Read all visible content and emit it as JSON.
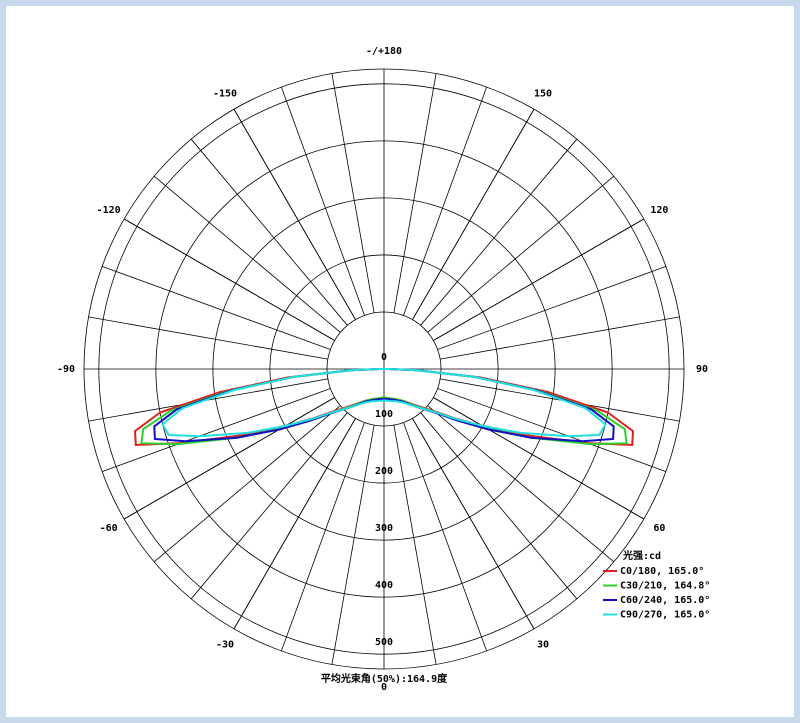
{
  "chart_data": {
    "type": "polar",
    "legend_title": "光强:cd",
    "footer": "平均光束角(50%):164.9度",
    "rlim": [
      0,
      526
    ],
    "rticks": [
      0,
      100,
      200,
      300,
      400,
      500
    ],
    "thetaticks": [
      {
        "value": 180,
        "label": "-/+180"
      },
      150,
      120,
      90,
      60,
      30,
      0,
      -30,
      -60,
      -90,
      -120,
      -150
    ],
    "x": [
      -90,
      -88,
      -85,
      -82,
      -79,
      -76,
      -73,
      -70,
      -65,
      -60,
      -55,
      -50,
      -40,
      -30,
      -20,
      -10,
      0,
      10,
      20,
      30,
      40,
      50,
      55,
      60,
      65,
      70,
      73,
      76,
      79,
      82,
      85,
      88,
      90
    ],
    "series": [
      {
        "name": "C0/180, 165.0°",
        "color": "#e02020",
        "values": [
          5,
          60,
          170,
          290,
          400,
          450,
          455,
          380,
          275,
          200,
          150,
          115,
          82,
          64,
          56,
          52,
          50,
          52,
          56,
          64,
          82,
          115,
          150,
          200,
          275,
          380,
          455,
          450,
          400,
          290,
          170,
          60,
          5
        ]
      },
      {
        "name": "C30/210, 164.8°",
        "color": "#30d030",
        "values": [
          5,
          55,
          160,
          275,
          380,
          435,
          445,
          385,
          285,
          210,
          155,
          118,
          84,
          64,
          56,
          52,
          50,
          52,
          56,
          64,
          84,
          118,
          155,
          210,
          285,
          385,
          445,
          435,
          380,
          275,
          160,
          55,
          5
        ]
      },
      {
        "name": "C60/240, 165.0°",
        "color": "#1010c0",
        "values": [
          8,
          60,
          160,
          270,
          370,
          415,
          420,
          370,
          285,
          212,
          158,
          120,
          86,
          66,
          58,
          54,
          52,
          54,
          58,
          66,
          86,
          120,
          158,
          212,
          285,
          370,
          420,
          415,
          370,
          270,
          160,
          60,
          8
        ]
      },
      {
        "name": "C90/270, 165.0°",
        "color": "#20e0e0",
        "values": [
          8,
          60,
          160,
          265,
          360,
          400,
          395,
          345,
          265,
          200,
          152,
          118,
          86,
          68,
          60,
          57,
          55,
          57,
          60,
          68,
          86,
          118,
          152,
          200,
          265,
          345,
          395,
          400,
          360,
          265,
          160,
          60,
          8
        ]
      }
    ]
  }
}
